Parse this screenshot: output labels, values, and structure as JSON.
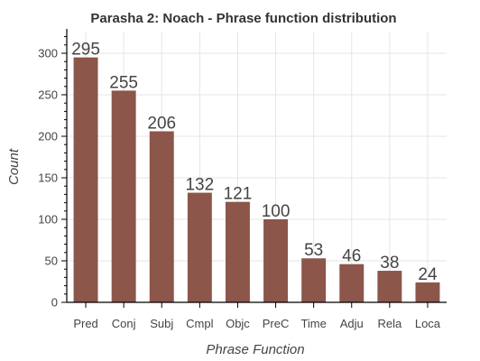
{
  "chart_data": {
    "type": "bar",
    "title": "Parasha 2: Noach - Phrase function distribution",
    "xlabel": "Phrase Function",
    "ylabel": "Count",
    "categories": [
      "Pred",
      "Conj",
      "Subj",
      "Cmpl",
      "Objc",
      "PreC",
      "Time",
      "Adju",
      "Rela",
      "Loca"
    ],
    "values": [
      295,
      255,
      206,
      132,
      121,
      100,
      53,
      46,
      38,
      24
    ],
    "data_labels": [
      "295",
      "255",
      "206",
      "132",
      "121",
      "100",
      "53",
      "46",
      "38",
      "24"
    ],
    "ylim": [
      0,
      325
    ],
    "yticks": [
      0,
      50,
      100,
      150,
      200,
      250,
      300
    ],
    "ytick_labels": [
      "0",
      "50",
      "100",
      "150",
      "200",
      "250",
      "300"
    ],
    "bar_color": "#8c564b",
    "grid": true,
    "legend": "none"
  }
}
